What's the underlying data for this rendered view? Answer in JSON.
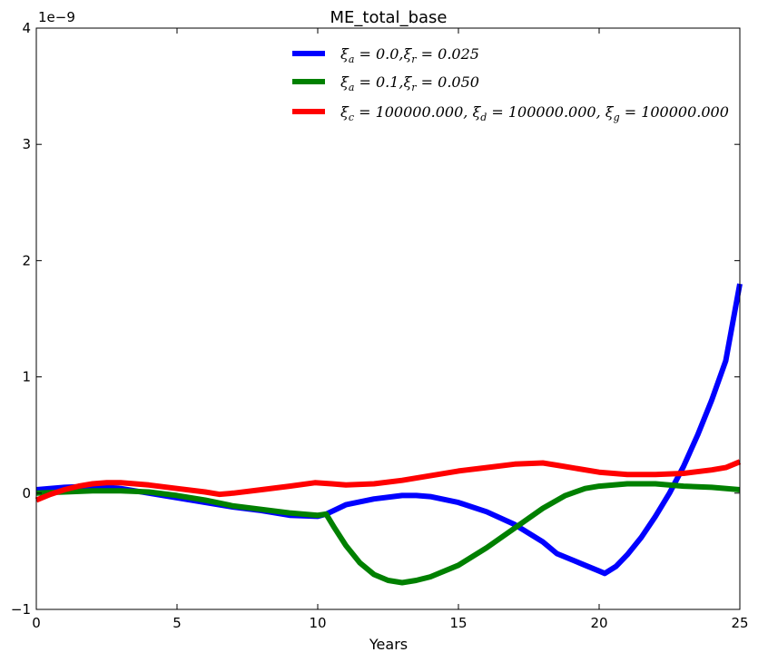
{
  "chart_data": {
    "type": "line",
    "title": "ME_total_base",
    "xlabel": "Years",
    "ylabel": "",
    "y_multiplier_label": "1e−9",
    "xlim": [
      0,
      25
    ],
    "ylim": [
      -1,
      4
    ],
    "x_ticks": [
      0,
      5,
      10,
      15,
      20,
      25
    ],
    "y_ticks": [
      -1,
      0,
      1,
      2,
      3,
      4
    ],
    "x_tick_labels": [
      "0",
      "5",
      "10",
      "15",
      "20",
      "25"
    ],
    "y_tick_labels": [
      "−1",
      "0",
      "1",
      "2",
      "3",
      "4"
    ],
    "grid": false,
    "legend_position": "top-center",
    "series": [
      {
        "name": "ξa=0.0,ξr=0.025",
        "color": "#0000ff",
        "points": [
          [
            0,
            0.03
          ],
          [
            1,
            0.05
          ],
          [
            2,
            0.06
          ],
          [
            3,
            0.04
          ],
          [
            4,
            0.0
          ],
          [
            5,
            -0.04
          ],
          [
            6,
            -0.08
          ],
          [
            7,
            -0.12
          ],
          [
            8,
            -0.15
          ],
          [
            9,
            -0.19
          ],
          [
            10,
            -0.2
          ],
          [
            10.3,
            -0.18
          ],
          [
            11,
            -0.1
          ],
          [
            12,
            -0.05
          ],
          [
            13,
            -0.02
          ],
          [
            13.5,
            -0.02
          ],
          [
            14,
            -0.03
          ],
          [
            15,
            -0.08
          ],
          [
            16,
            -0.16
          ],
          [
            17,
            -0.27
          ],
          [
            18,
            -0.42
          ],
          [
            18.5,
            -0.52
          ],
          [
            19,
            -0.57
          ],
          [
            19.5,
            -0.62
          ],
          [
            20,
            -0.67
          ],
          [
            20.2,
            -0.69
          ],
          [
            20.6,
            -0.63
          ],
          [
            21,
            -0.53
          ],
          [
            21.5,
            -0.38
          ],
          [
            22,
            -0.2
          ],
          [
            22.5,
            0.0
          ],
          [
            23,
            0.23
          ],
          [
            23.5,
            0.5
          ],
          [
            24,
            0.8
          ],
          [
            24.5,
            1.14
          ],
          [
            25,
            1.8
          ]
        ]
      },
      {
        "name": "ξa=0.1,ξr=0.050",
        "color": "#008000",
        "points": [
          [
            0,
            0.0
          ],
          [
            1,
            0.01
          ],
          [
            2,
            0.02
          ],
          [
            3,
            0.02
          ],
          [
            4,
            0.01
          ],
          [
            5,
            -0.02
          ],
          [
            6,
            -0.06
          ],
          [
            7,
            -0.11
          ],
          [
            8,
            -0.14
          ],
          [
            9,
            -0.17
          ],
          [
            10,
            -0.19
          ],
          [
            10.3,
            -0.18
          ],
          [
            10.6,
            -0.3
          ],
          [
            11,
            -0.45
          ],
          [
            11.5,
            -0.6
          ],
          [
            12,
            -0.7
          ],
          [
            12.5,
            -0.75
          ],
          [
            13,
            -0.77
          ],
          [
            13.5,
            -0.75
          ],
          [
            14,
            -0.72
          ],
          [
            15,
            -0.62
          ],
          [
            16,
            -0.47
          ],
          [
            17,
            -0.3
          ],
          [
            18,
            -0.13
          ],
          [
            18.8,
            -0.02
          ],
          [
            19.5,
            0.04
          ],
          [
            20,
            0.06
          ],
          [
            21,
            0.08
          ],
          [
            22,
            0.08
          ],
          [
            23,
            0.06
          ],
          [
            24,
            0.05
          ],
          [
            25,
            0.03
          ]
        ]
      },
      {
        "name": "ξc=100000.000,ξd=100000.000,ξg=100000.000",
        "color": "#ff0000",
        "points": [
          [
            0,
            -0.06
          ],
          [
            0.5,
            -0.01
          ],
          [
            1,
            0.03
          ],
          [
            1.5,
            0.06
          ],
          [
            2,
            0.08
          ],
          [
            2.5,
            0.09
          ],
          [
            3,
            0.09
          ],
          [
            3.5,
            0.08
          ],
          [
            4,
            0.07
          ],
          [
            5,
            0.04
          ],
          [
            6,
            0.01
          ],
          [
            6.5,
            -0.01
          ],
          [
            7,
            0.0
          ],
          [
            8,
            0.03
          ],
          [
            9,
            0.06
          ],
          [
            9.9,
            0.09
          ],
          [
            10.5,
            0.08
          ],
          [
            11,
            0.07
          ],
          [
            12,
            0.08
          ],
          [
            13,
            0.11
          ],
          [
            14,
            0.15
          ],
          [
            15,
            0.19
          ],
          [
            16,
            0.22
          ],
          [
            17,
            0.25
          ],
          [
            18,
            0.26
          ],
          [
            18.5,
            0.24
          ],
          [
            19,
            0.22
          ],
          [
            20,
            0.18
          ],
          [
            21,
            0.16
          ],
          [
            22,
            0.16
          ],
          [
            23,
            0.17
          ],
          [
            24,
            0.2
          ],
          [
            24.5,
            0.22
          ],
          [
            25,
            0.27
          ]
        ]
      }
    ],
    "legend_labels": [
      {
        "xi1": "ξ",
        "s1": "a",
        "eq1": " = 0.0,",
        "xi2": "ξ",
        "s2": "r",
        "eq2": " = 0.025"
      },
      {
        "xi1": "ξ",
        "s1": "a",
        "eq1": " = 0.1,",
        "xi2": "ξ",
        "s2": "r",
        "eq2": " = 0.050"
      },
      {
        "xi1": "ξ",
        "s1": "c",
        "eq1": " = 100000.000, ",
        "xi2": "ξ",
        "s2": "d",
        "eq2": " = 100000.000, ",
        "xi3": "ξ",
        "s3": "g",
        "eq3": " = 100000.000"
      }
    ]
  }
}
